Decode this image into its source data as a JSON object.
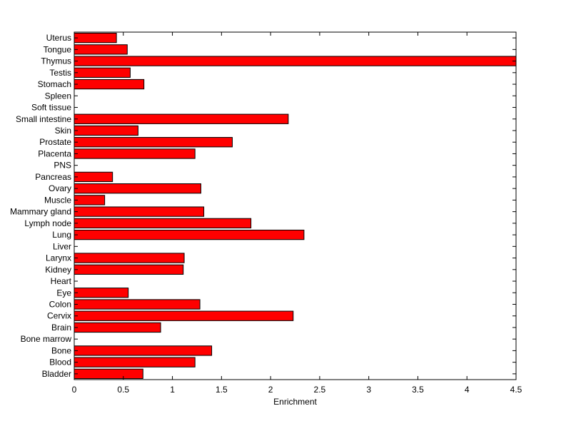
{
  "chart_data": {
    "type": "bar",
    "orientation": "horizontal",
    "title": "",
    "xlabel": "Enrichment",
    "ylabel": "",
    "xlim": [
      0,
      4.5
    ],
    "xticks": [
      0,
      0.5,
      1,
      1.5,
      2,
      2.5,
      3,
      3.5,
      4,
      4.5
    ],
    "xtick_labels": [
      "0",
      "0.5",
      "1",
      "1.5",
      "2",
      "2.5",
      "3",
      "3.5",
      "4",
      "4.5"
    ],
    "grid": false,
    "legend": "none",
    "bar_color": "#ff0000",
    "bar_edge_color": "#000000",
    "categories": [
      "Bladder",
      "Blood",
      "Bone",
      "Bone marrow",
      "Brain",
      "Cervix",
      "Colon",
      "Eye",
      "Heart",
      "Kidney",
      "Larynx",
      "Liver",
      "Lung",
      "Lymph node",
      "Mammary gland",
      "Muscle",
      "Ovary",
      "Pancreas",
      "PNS",
      "Placenta",
      "Prostate",
      "Skin",
      "Small intestine",
      "Soft tissue",
      "Spleen",
      "Stomach",
      "Testis",
      "Thymus",
      "Tongue",
      "Uterus"
    ],
    "values": [
      0.7,
      1.23,
      1.4,
      0,
      0.88,
      2.23,
      1.28,
      0.55,
      0,
      1.11,
      1.12,
      0,
      2.34,
      1.8,
      1.32,
      0.31,
      1.29,
      0.39,
      0,
      1.23,
      1.61,
      0.65,
      2.18,
      0,
      0,
      0.71,
      0.57,
      4.5,
      0.54,
      0.43
    ]
  }
}
